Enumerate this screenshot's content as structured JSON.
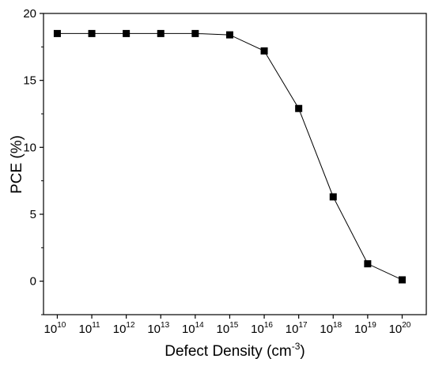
{
  "chart_data": {
    "type": "line",
    "title": "",
    "xlabel": "Defect Density (cm",
    "xlabel_sup": "-3",
    "xlabel_close": ")",
    "ylabel": "PCE (%)",
    "x_scale": "log",
    "x_ticks": [
      {
        "base": "10",
        "exp": "10"
      },
      {
        "base": "10",
        "exp": "11"
      },
      {
        "base": "10",
        "exp": "12"
      },
      {
        "base": "10",
        "exp": "13"
      },
      {
        "base": "10",
        "exp": "14"
      },
      {
        "base": "10",
        "exp": "15"
      },
      {
        "base": "10",
        "exp": "16"
      },
      {
        "base": "10",
        "exp": "17"
      },
      {
        "base": "10",
        "exp": "18"
      },
      {
        "base": "10",
        "exp": "19"
      },
      {
        "base": "10",
        "exp": "20"
      }
    ],
    "xlim_exp": [
      9.6,
      20.7
    ],
    "ylim": [
      -2.5,
      20
    ],
    "y_ticks": [
      "0",
      "5",
      "10",
      "15",
      "20"
    ],
    "grid": false,
    "legend": "none",
    "marker": "square",
    "colors": {
      "line": "#000000",
      "marker": "#000000"
    },
    "series": [
      {
        "x_exp": [
          10,
          11,
          12,
          13,
          14,
          15,
          16,
          17,
          18,
          19,
          20
        ],
        "y": [
          18.5,
          18.5,
          18.5,
          18.5,
          18.5,
          18.4,
          17.2,
          12.9,
          6.3,
          1.3,
          0.1
        ]
      }
    ]
  }
}
